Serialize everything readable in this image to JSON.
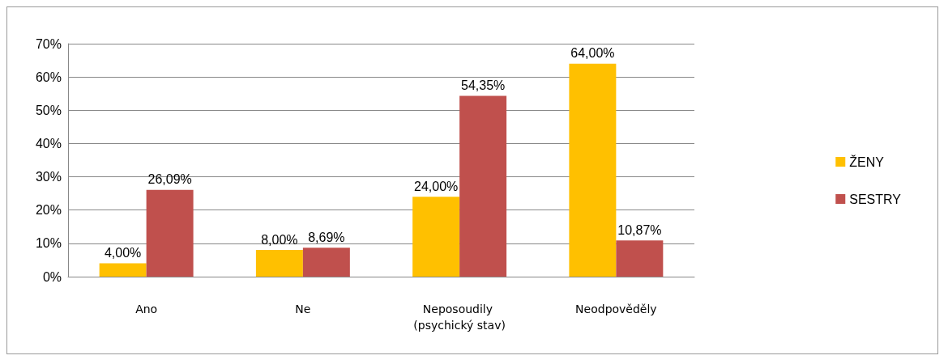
{
  "chart_data": {
    "type": "bar",
    "categories": [
      "Ano",
      "Ne",
      "Neposoudily (psychický stav)",
      "Neodpověděly"
    ],
    "series": [
      {
        "name": "ŽENY",
        "color": "#ffc000",
        "values": [
          4,
          8,
          24,
          64
        ],
        "value_labels": [
          "4,00%",
          "8,00%",
          "24,00%",
          "64,00%"
        ]
      },
      {
        "name": "SESTRY",
        "color": "#c0504d",
        "values": [
          26.09,
          8.69,
          54.35,
          10.87
        ],
        "value_labels": [
          "26,09%",
          "8,69%",
          "54,35%",
          "10,87%"
        ]
      }
    ],
    "ylim": [
      0,
      70
    ],
    "yticks": [
      {
        "value": 0,
        "label": "0%"
      },
      {
        "value": 10,
        "label": "10%"
      },
      {
        "value": 20,
        "label": "20%"
      },
      {
        "value": 30,
        "label": "30%"
      },
      {
        "value": 40,
        "label": "40%"
      },
      {
        "value": 50,
        "label": "50%"
      },
      {
        "value": 60,
        "label": "60%"
      },
      {
        "value": 70,
        "label": "70%"
      }
    ],
    "grid": "y",
    "legend": "right"
  }
}
